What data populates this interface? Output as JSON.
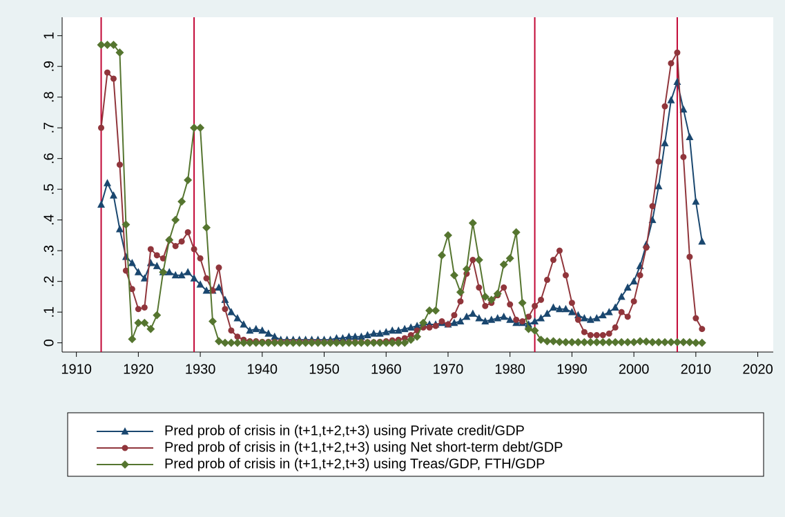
{
  "chart_data": {
    "type": "line",
    "x": [
      1914,
      1915,
      1916,
      1917,
      1918,
      1919,
      1920,
      1921,
      1922,
      1923,
      1924,
      1925,
      1926,
      1927,
      1928,
      1929,
      1930,
      1931,
      1932,
      1933,
      1934,
      1935,
      1936,
      1937,
      1938,
      1939,
      1940,
      1941,
      1942,
      1943,
      1944,
      1945,
      1946,
      1947,
      1948,
      1949,
      1950,
      1951,
      1952,
      1953,
      1954,
      1955,
      1956,
      1957,
      1958,
      1959,
      1960,
      1961,
      1962,
      1963,
      1964,
      1965,
      1966,
      1967,
      1968,
      1969,
      1970,
      1971,
      1972,
      1973,
      1974,
      1975,
      1976,
      1977,
      1978,
      1979,
      1980,
      1981,
      1982,
      1983,
      1984,
      1985,
      1986,
      1987,
      1988,
      1989,
      1990,
      1991,
      1992,
      1993,
      1994,
      1995,
      1996,
      1997,
      1998,
      1999,
      2000,
      2001,
      2002,
      2003,
      2004,
      2005,
      2006,
      2007,
      2008,
      2009,
      2010,
      2011
    ],
    "series": [
      {
        "name": "Pred prob of crisis in (t+1,t+2,t+3) using Private credit/GDP",
        "color": "#1a476f",
        "marker": "triangle",
        "values": [
          0.45,
          0.52,
          0.48,
          0.37,
          0.28,
          0.26,
          0.23,
          0.21,
          0.26,
          0.25,
          0.23,
          0.23,
          0.22,
          0.22,
          0.23,
          0.21,
          0.19,
          0.17,
          0.17,
          0.18,
          0.14,
          0.1,
          0.08,
          0.06,
          0.04,
          0.045,
          0.04,
          0.03,
          0.02,
          0.01,
          0.01,
          0.01,
          0.01,
          0.01,
          0.01,
          0.01,
          0.01,
          0.01,
          0.015,
          0.015,
          0.02,
          0.02,
          0.02,
          0.025,
          0.03,
          0.03,
          0.035,
          0.04,
          0.04,
          0.045,
          0.05,
          0.055,
          0.06,
          0.06,
          0.06,
          0.065,
          0.06,
          0.065,
          0.07,
          0.085,
          0.095,
          0.08,
          0.07,
          0.075,
          0.08,
          0.085,
          0.075,
          0.065,
          0.065,
          0.06,
          0.07,
          0.08,
          0.095,
          0.115,
          0.11,
          0.11,
          0.1,
          0.09,
          0.08,
          0.075,
          0.08,
          0.09,
          0.1,
          0.115,
          0.15,
          0.18,
          0.2,
          0.25,
          0.32,
          0.4,
          0.51,
          0.65,
          0.79,
          0.85,
          0.76,
          0.67,
          0.46,
          0.33
        ]
      },
      {
        "name": "Pred prob of crisis in (t+1,t+2,t+3) using Net short-term debt/GDP",
        "color": "#90353b",
        "marker": "circle",
        "values": [
          0.7,
          0.88,
          0.86,
          0.58,
          0.235,
          0.175,
          0.11,
          0.115,
          0.305,
          0.285,
          0.275,
          0.335,
          0.315,
          0.33,
          0.36,
          0.305,
          0.275,
          0.21,
          0.17,
          0.245,
          0.11,
          0.04,
          0.02,
          0.01,
          0.005,
          0.005,
          0.003,
          0.003,
          0.003,
          0.003,
          0.003,
          0.003,
          0.003,
          0.003,
          0.003,
          0.003,
          0.002,
          0.002,
          0.002,
          0.002,
          0.002,
          0.002,
          0.002,
          0.002,
          0.002,
          0.003,
          0.005,
          0.008,
          0.01,
          0.015,
          0.025,
          0.04,
          0.05,
          0.05,
          0.055,
          0.07,
          0.06,
          0.09,
          0.135,
          0.225,
          0.27,
          0.18,
          0.12,
          0.13,
          0.155,
          0.18,
          0.125,
          0.075,
          0.07,
          0.085,
          0.12,
          0.14,
          0.205,
          0.27,
          0.3,
          0.22,
          0.13,
          0.075,
          0.035,
          0.025,
          0.025,
          0.025,
          0.03,
          0.05,
          0.1,
          0.085,
          0.135,
          0.22,
          0.31,
          0.445,
          0.59,
          0.77,
          0.91,
          0.945,
          0.605,
          0.28,
          0.08,
          0.045
        ]
      },
      {
        "name": "Pred prob of crisis in (t+1,t+2,t+3) using Treas/GDP, FTH/GDP",
        "color": "#55752f",
        "marker": "diamond",
        "values": [
          0.97,
          0.97,
          0.97,
          0.945,
          0.385,
          0.012,
          0.065,
          0.065,
          0.045,
          0.09,
          0.23,
          0.335,
          0.4,
          0.46,
          0.53,
          0.7,
          0.7,
          0.375,
          0.07,
          0.005,
          0,
          0,
          0,
          0,
          0,
          0,
          0,
          0,
          0,
          0,
          0,
          0,
          0,
          0,
          0,
          0,
          0,
          0,
          0,
          0,
          0,
          0,
          0,
          0,
          0,
          0,
          0,
          0,
          0,
          0,
          0.01,
          0.02,
          0.065,
          0.105,
          0.105,
          0.285,
          0.35,
          0.22,
          0.165,
          0.24,
          0.39,
          0.27,
          0.15,
          0.14,
          0.16,
          0.255,
          0.275,
          0.36,
          0.13,
          0.045,
          0.04,
          0.01,
          0.005,
          0.005,
          0.003,
          0.002,
          0.002,
          0.002,
          0.002,
          0.002,
          0.002,
          0.002,
          0.002,
          0.002,
          0.002,
          0.002,
          0.002,
          0.005,
          0.004,
          0.002,
          0.002,
          0.002,
          0.002,
          0.002,
          0.002,
          0.002,
          0,
          0
        ]
      }
    ],
    "vlines": [
      1914,
      1929,
      1984,
      2007
    ],
    "vline_color": "#c10534",
    "xlim": [
      1907.7,
      2022.5
    ],
    "xticks": [
      1910,
      1920,
      1930,
      1940,
      1950,
      1960,
      1970,
      1980,
      1990,
      2000,
      2010,
      2020
    ],
    "ylim": [
      -0.03,
      1.06
    ],
    "yticks": [
      0,
      {
        "value": 0.1,
        "label": ".1"
      },
      {
        "value": 0.2,
        "label": ".2"
      },
      {
        "value": 0.3,
        "label": ".3"
      },
      {
        "value": 0.4,
        "label": ".4"
      },
      {
        "value": 0.5,
        "label": ".5"
      },
      {
        "value": 0.6,
        "label": ".6"
      },
      {
        "value": 0.7,
        "label": ".7"
      },
      {
        "value": 0.8,
        "label": ".8"
      },
      {
        "value": 0.9,
        "label": ".9"
      },
      1
    ],
    "legend": "bottom"
  }
}
